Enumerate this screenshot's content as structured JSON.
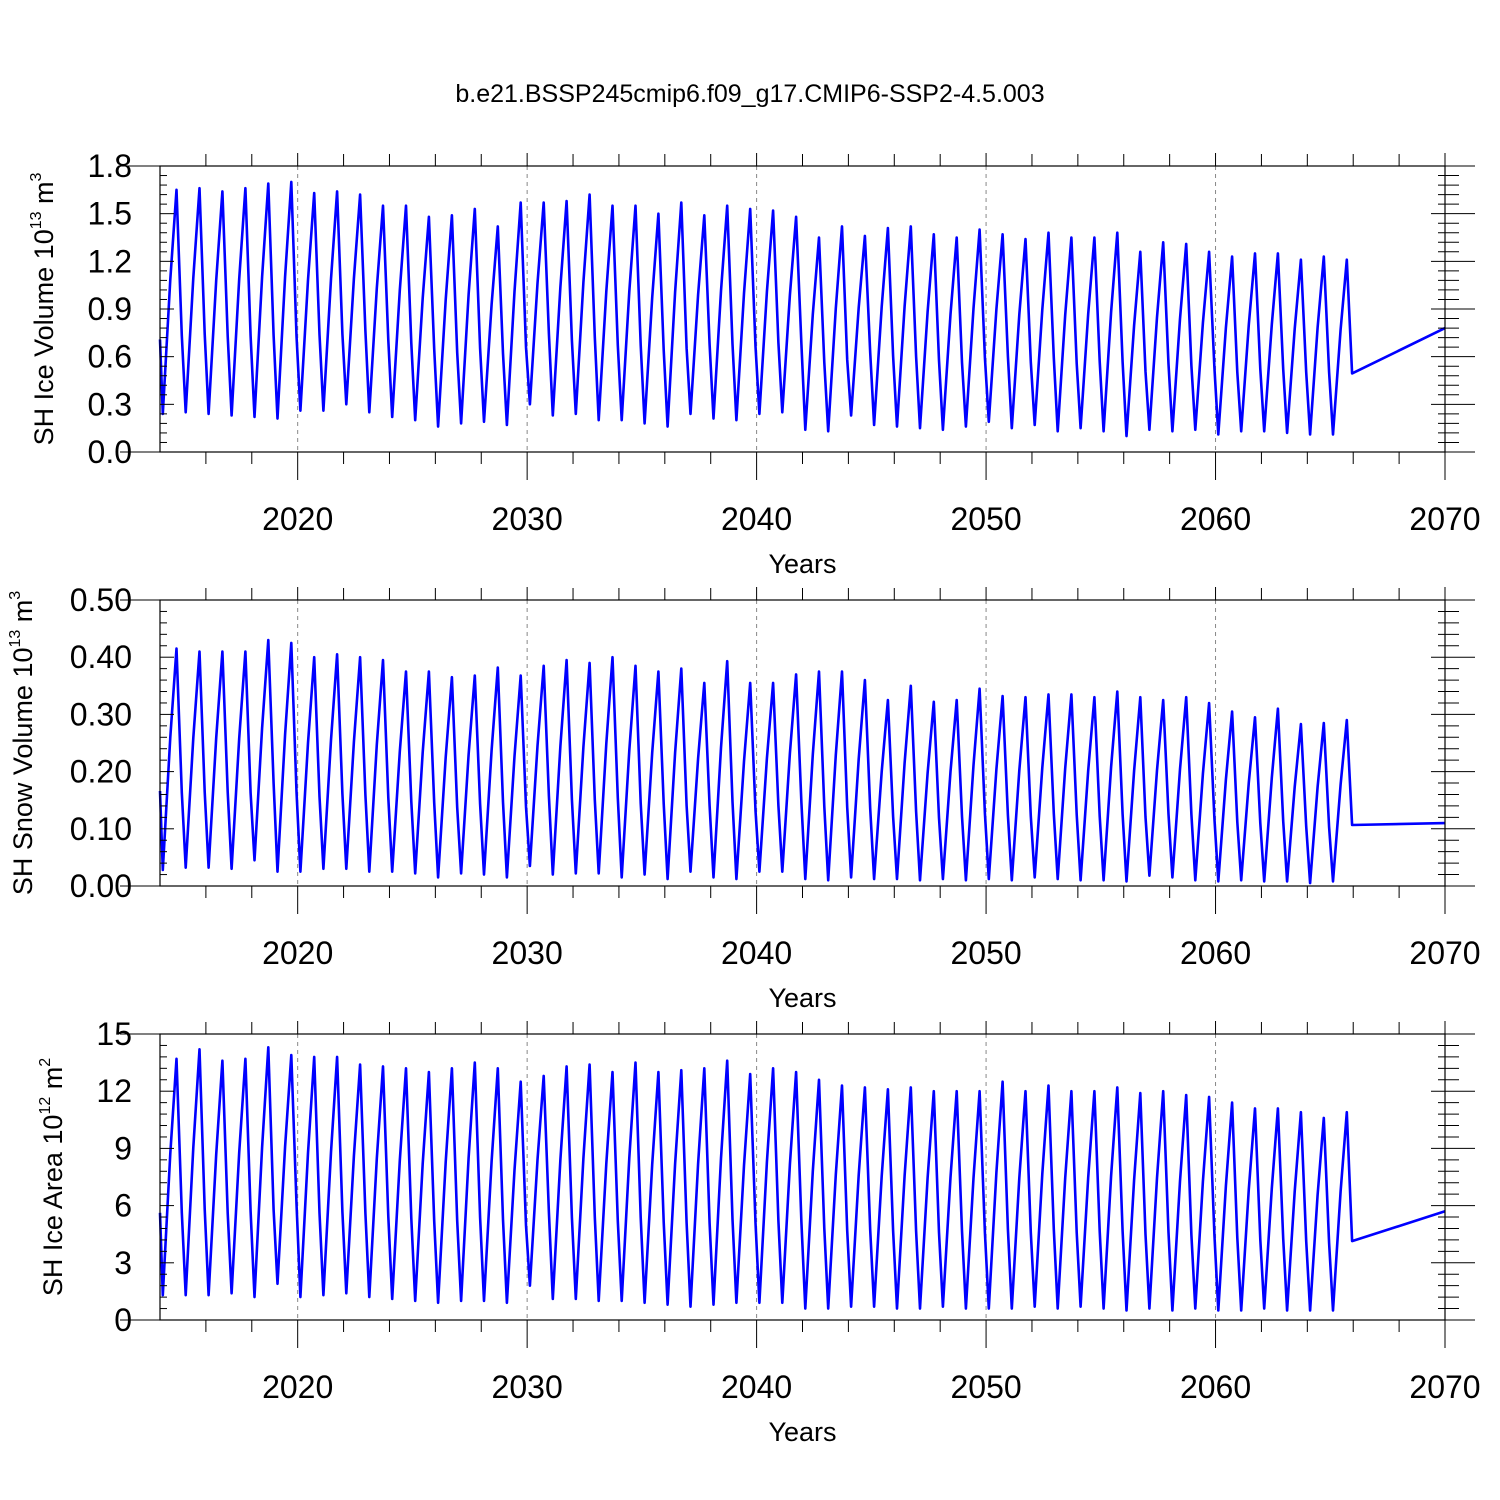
{
  "figure_title": "b.e21.BSSP245cmip6.f09_g17.CMIP6-SSP2-4.5.003",
  "series_color": "#0000ff",
  "chart_data": [
    {
      "type": "line",
      "title": "b.e21.BSSP245cmip6.f09_g17.CMIP6-SSP2-4.5.003",
      "xlabel": "Years",
      "ylabel_main": "SH Ice Volume 10",
      "ylabel_exp": "13",
      "ylabel_unit": " m",
      "ylabel_unit_exp": "3",
      "xlim": [
        2014.0,
        2070.0
      ],
      "ylim": [
        0.0,
        1.8
      ],
      "xticks": [
        "2020",
        "2030",
        "2040",
        "2050",
        "2060",
        "2070"
      ],
      "yticks": [
        "0.0",
        "0.3",
        "0.6",
        "0.9",
        "1.2",
        "1.5",
        "1.8"
      ],
      "grid": "dashed vertical lines at decades",
      "series": [
        {
          "name": "SH Ice Volume",
          "start_year": 2014.0,
          "annual_max": [
            1.65,
            1.66,
            1.64,
            1.66,
            1.69,
            1.7,
            1.63,
            1.64,
            1.62,
            1.55,
            1.55,
            1.48,
            1.49,
            1.53,
            1.42,
            1.57,
            1.57,
            1.58,
            1.62,
            1.55,
            1.55,
            1.5,
            1.57,
            1.49,
            1.55,
            1.53,
            1.52,
            1.48,
            1.35,
            1.42,
            1.36,
            1.41,
            1.42,
            1.37,
            1.35,
            1.4,
            1.37,
            1.34,
            1.38,
            1.35,
            1.35,
            1.38,
            1.26,
            1.32,
            1.31,
            1.26,
            1.23,
            1.25,
            1.25,
            1.21,
            1.23,
            1.21
          ],
          "annual_min": [
            0.24,
            0.25,
            0.24,
            0.23,
            0.22,
            0.21,
            0.26,
            0.26,
            0.3,
            0.25,
            0.22,
            0.2,
            0.16,
            0.18,
            0.19,
            0.17,
            0.3,
            0.23,
            0.24,
            0.2,
            0.2,
            0.18,
            0.16,
            0.24,
            0.21,
            0.2,
            0.24,
            0.25,
            0.14,
            0.13,
            0.23,
            0.17,
            0.16,
            0.15,
            0.14,
            0.16,
            0.19,
            0.15,
            0.17,
            0.13,
            0.15,
            0.13,
            0.1,
            0.14,
            0.13,
            0.14,
            0.11,
            0.13,
            0.13,
            0.12,
            0.11,
            0.11
          ],
          "final_value": 0.78
        }
      ]
    },
    {
      "type": "line",
      "xlabel": "Years",
      "ylabel_main": "SH Snow Volume 10",
      "ylabel_exp": "13",
      "ylabel_unit": " m",
      "ylabel_unit_exp": "3",
      "xlim": [
        2014.0,
        2070.0
      ],
      "ylim": [
        0.0,
        0.5
      ],
      "xticks": [
        "2020",
        "2030",
        "2040",
        "2050",
        "2060",
        "2070"
      ],
      "yticks": [
        "0.00",
        "0.10",
        "0.20",
        "0.30",
        "0.40",
        "0.50"
      ],
      "grid": "dashed vertical lines at decades",
      "series": [
        {
          "name": "SH Snow Volume",
          "start_year": 2014.0,
          "annual_max": [
            0.415,
            0.41,
            0.41,
            0.41,
            0.43,
            0.425,
            0.4,
            0.405,
            0.4,
            0.395,
            0.375,
            0.375,
            0.365,
            0.368,
            0.382,
            0.368,
            0.385,
            0.395,
            0.39,
            0.4,
            0.385,
            0.375,
            0.38,
            0.355,
            0.393,
            0.355,
            0.355,
            0.37,
            0.375,
            0.375,
            0.36,
            0.325,
            0.35,
            0.322,
            0.325,
            0.345,
            0.332,
            0.33,
            0.335,
            0.335,
            0.33,
            0.34,
            0.33,
            0.325,
            0.33,
            0.32,
            0.305,
            0.295,
            0.31,
            0.283,
            0.285,
            0.29
          ],
          "annual_min": [
            0.028,
            0.032,
            0.032,
            0.03,
            0.045,
            0.025,
            0.025,
            0.03,
            0.03,
            0.025,
            0.025,
            0.022,
            0.015,
            0.022,
            0.02,
            0.015,
            0.035,
            0.02,
            0.022,
            0.022,
            0.015,
            0.02,
            0.012,
            0.025,
            0.015,
            0.012,
            0.025,
            0.025,
            0.012,
            0.01,
            0.015,
            0.012,
            0.012,
            0.01,
            0.012,
            0.01,
            0.012,
            0.01,
            0.015,
            0.012,
            0.01,
            0.01,
            0.008,
            0.018,
            0.015,
            0.01,
            0.008,
            0.01,
            0.008,
            0.008,
            0.005,
            0.008
          ],
          "final_value": 0.11
        }
      ]
    },
    {
      "type": "line",
      "xlabel": "Years",
      "ylabel_main": "SH Ice Area 10",
      "ylabel_exp": "12",
      "ylabel_unit": " m",
      "ylabel_unit_exp": "2",
      "xlim": [
        2014.0,
        2070.0
      ],
      "ylim": [
        0,
        15
      ],
      "xticks": [
        "2020",
        "2030",
        "2040",
        "2050",
        "2060",
        "2070"
      ],
      "yticks": [
        "0",
        "3",
        "6",
        "9",
        "12",
        "15"
      ],
      "grid": "dashed vertical lines at decades",
      "series": [
        {
          "name": "SH Ice Area",
          "start_year": 2014.0,
          "annual_max": [
            13.7,
            14.2,
            13.6,
            13.7,
            14.3,
            13.9,
            13.8,
            13.8,
            13.4,
            13.3,
            13.2,
            13.0,
            13.2,
            13.5,
            13.2,
            12.5,
            12.8,
            13.3,
            13.4,
            13.0,
            13.5,
            13.0,
            13.1,
            13.2,
            13.6,
            12.9,
            13.2,
            13.0,
            12.6,
            12.3,
            12.2,
            12.1,
            12.2,
            12.0,
            12.0,
            12.0,
            12.5,
            12.0,
            12.3,
            12.0,
            12.0,
            12.2,
            11.9,
            12.0,
            11.8,
            11.7,
            11.4,
            11.1,
            11.1,
            10.9,
            10.6,
            10.9
          ],
          "annual_min": [
            1.3,
            1.3,
            1.3,
            1.4,
            1.2,
            1.9,
            1.2,
            1.3,
            1.4,
            1.2,
            1.1,
            1.0,
            0.9,
            1.0,
            1.0,
            0.9,
            1.8,
            1.1,
            1.1,
            1.0,
            1.0,
            0.9,
            0.8,
            0.7,
            0.8,
            0.9,
            0.9,
            0.9,
            0.6,
            0.6,
            0.7,
            0.7,
            0.6,
            0.6,
            0.7,
            0.6,
            0.6,
            0.6,
            0.7,
            0.6,
            0.7,
            0.6,
            0.5,
            0.6,
            0.5,
            0.6,
            0.5,
            0.5,
            0.6,
            0.5,
            0.5,
            0.5
          ],
          "final_value": 5.7
        }
      ]
    }
  ]
}
